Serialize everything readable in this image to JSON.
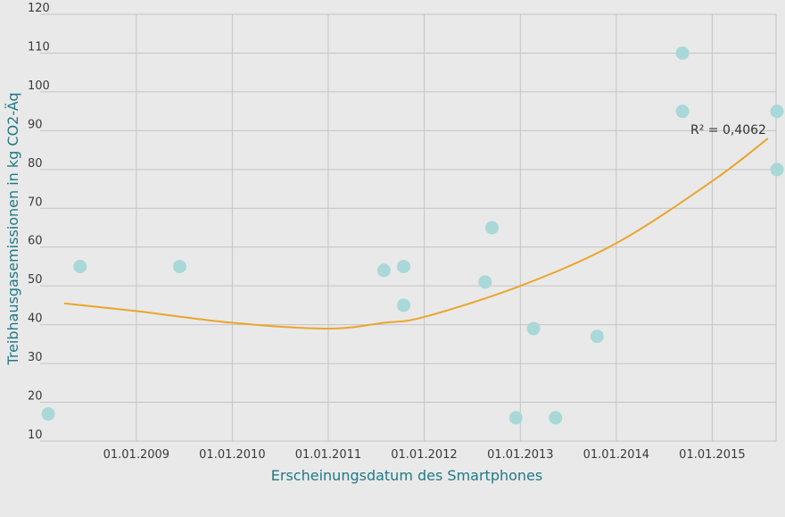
{
  "chart_data": {
    "type": "scatter",
    "xlabel": "Erscheinungsdatum des Smartphones",
    "ylabel": "Treibhausgasemissionen in kg CO2-Äq",
    "ylim": [
      10,
      120
    ],
    "xlim": [
      "2008-01-01",
      "2015-09-01"
    ],
    "y_ticks": [
      10,
      20,
      30,
      40,
      50,
      60,
      70,
      80,
      90,
      100,
      110,
      120
    ],
    "x_ticks": [
      "2009-01-01",
      "2010-01-01",
      "2011-01-01",
      "2012-01-01",
      "2013-01-01",
      "2014-01-01",
      "2015-01-01"
    ],
    "x_tick_labels": [
      "01.01.2009",
      "01.01.2010",
      "01.01.2011",
      "01.01.2012",
      "01.01.2013",
      "01.01.2014",
      "01.01.2015"
    ],
    "grid": true,
    "points": [
      {
        "x": "2008-02-01",
        "y": 17
      },
      {
        "x": "2008-06-01",
        "y": 55
      },
      {
        "x": "2009-06-15",
        "y": 55
      },
      {
        "x": "2011-08-01",
        "y": 54
      },
      {
        "x": "2011-10-15",
        "y": 55
      },
      {
        "x": "2011-10-15",
        "y": 45
      },
      {
        "x": "2012-08-20",
        "y": 51
      },
      {
        "x": "2012-09-15",
        "y": 65
      },
      {
        "x": "2012-12-15",
        "y": 16
      },
      {
        "x": "2013-02-20",
        "y": 39
      },
      {
        "x": "2013-05-15",
        "y": 16
      },
      {
        "x": "2013-10-20",
        "y": 37
      },
      {
        "x": "2014-09-10",
        "y": 110
      },
      {
        "x": "2014-09-10",
        "y": 95
      },
      {
        "x": "2015-09-15",
        "y": 95
      },
      {
        "x": "2015-09-15",
        "y": 80
      }
    ],
    "trendline": {
      "type": "polynomial",
      "points": [
        {
          "x": "2008-04-01",
          "y": 45.5
        },
        {
          "x": "2009-01-01",
          "y": 43.5
        },
        {
          "x": "2010-01-01",
          "y": 40.5
        },
        {
          "x": "2011-01-01",
          "y": 39
        },
        {
          "x": "2011-08-01",
          "y": 40.5
        },
        {
          "x": "2012-01-01",
          "y": 42
        },
        {
          "x": "2013-01-01",
          "y": 50
        },
        {
          "x": "2014-01-01",
          "y": 61
        },
        {
          "x": "2015-01-01",
          "y": 77
        },
        {
          "x": "2015-08-01",
          "y": 88
        }
      ],
      "r2_label": "R² = 0,4062"
    },
    "colors": {
      "points": "#a9d8d9",
      "trendline": "#eba52c",
      "grid": "#c4c4c4",
      "axis_title": "#1f7a86"
    }
  }
}
